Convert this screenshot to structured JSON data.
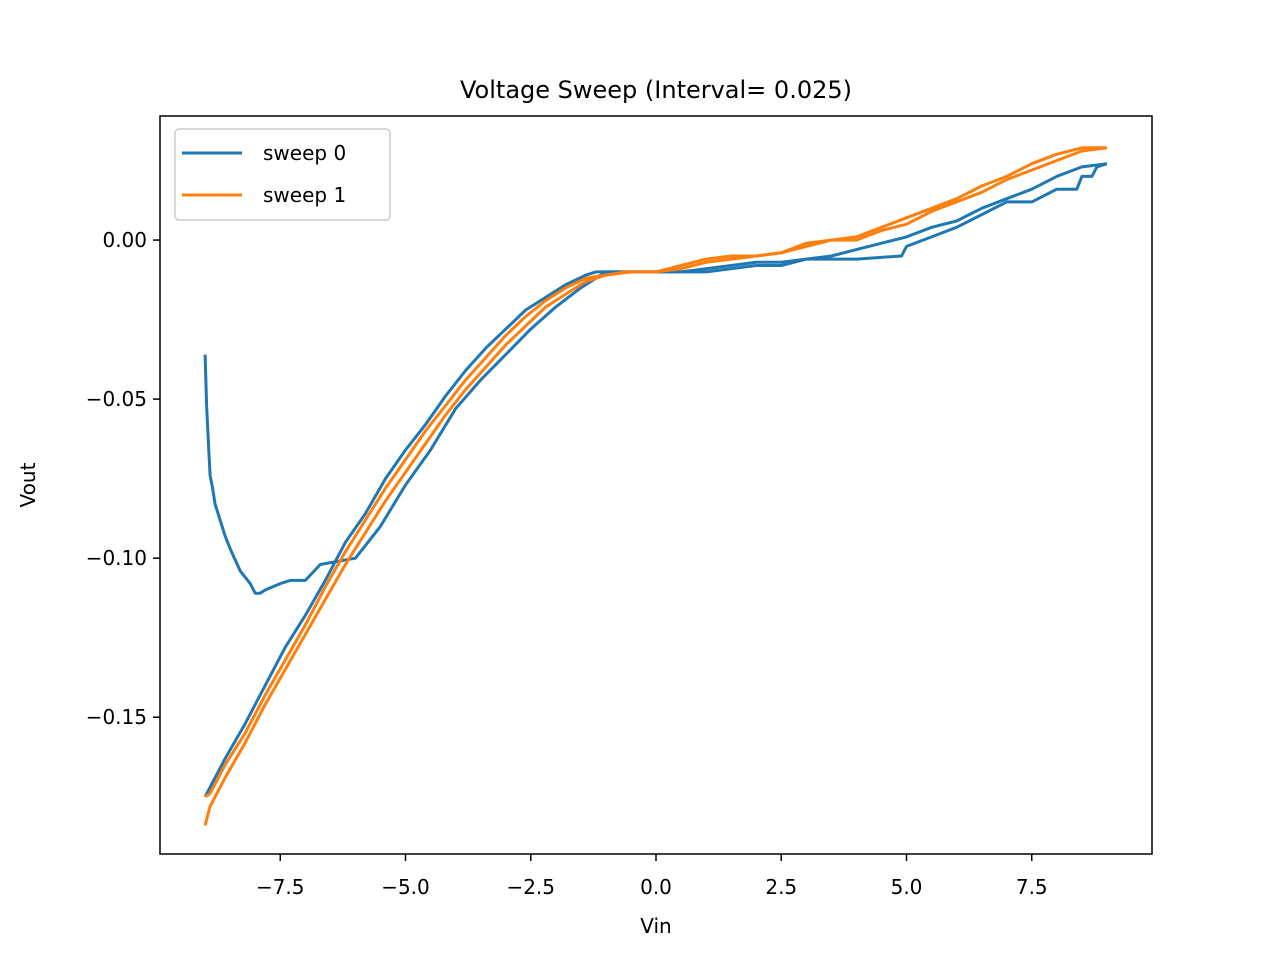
{
  "chart_data": {
    "type": "line",
    "title": "Voltage Sweep (Interval= 0.025)",
    "xlabel": "Vin",
    "ylabel": "Vout",
    "xlim": [
      -9.9,
      9.9
    ],
    "ylim": [
      -0.193,
      0.039
    ],
    "xticks": [
      -7.5,
      -5.0,
      -2.5,
      0.0,
      2.5,
      5.0,
      7.5
    ],
    "xtick_labels": [
      "−7.5",
      "−5.0",
      "−2.5",
      "0.0",
      "2.5",
      "5.0",
      "7.5"
    ],
    "yticks": [
      0.0,
      -0.05,
      -0.1,
      -0.15
    ],
    "ytick_labels": [
      "0.00",
      "−0.05",
      "−0.10",
      "−0.15"
    ],
    "grid": false,
    "legend": "upper left",
    "series": [
      {
        "name": "sweep 0",
        "color": "#1f77b4",
        "x": [
          -9.0,
          -8.97,
          -8.93,
          -8.9,
          -8.85,
          -8.8,
          -8.7,
          -8.6,
          -8.5,
          -8.3,
          -8.1,
          -8.0,
          -7.9,
          -7.8,
          -7.5,
          -7.3,
          -7.0,
          -6.7,
          -6.0,
          -5.5,
          -5.0,
          -4.5,
          -4.0,
          -3.5,
          -3.0,
          -2.5,
          -2.0,
          -1.5,
          -1.2,
          -1.0,
          0.0,
          1.0,
          2.0,
          2.5,
          3.0,
          4.0,
          4.9,
          5.0,
          5.5,
          6.0,
          6.5,
          7.0,
          7.5,
          8.0,
          8.4,
          8.5,
          8.7,
          8.8,
          9.0
        ],
        "y": [
          -0.036,
          -0.052,
          -0.065,
          -0.074,
          -0.078,
          -0.083,
          -0.088,
          -0.093,
          -0.097,
          -0.104,
          -0.108,
          -0.111,
          -0.111,
          -0.11,
          -0.108,
          -0.107,
          -0.107,
          -0.102,
          -0.1,
          -0.09,
          -0.077,
          -0.066,
          -0.053,
          -0.044,
          -0.036,
          -0.028,
          -0.021,
          -0.015,
          -0.012,
          -0.01,
          -0.01,
          -0.01,
          -0.008,
          -0.008,
          -0.006,
          -0.006,
          -0.005,
          -0.002,
          0.001,
          0.004,
          0.008,
          0.012,
          0.012,
          0.016,
          0.016,
          0.02,
          0.02,
          0.023,
          0.024
        ]
      },
      {
        "name": "sweep 0",
        "color": "#1f77b4",
        "x": [
          -9.0,
          -8.9,
          -8.6,
          -8.2,
          -7.8,
          -7.4,
          -7.0,
          -6.6,
          -6.2,
          -5.8,
          -5.4,
          -5.0,
          -4.6,
          -4.2,
          -3.8,
          -3.4,
          -3.0,
          -2.6,
          -2.2,
          -1.8,
          -1.4,
          -1.2,
          -1.0,
          -0.5,
          0.0,
          0.5,
          1.0,
          1.5,
          2.0,
          2.5,
          3.0,
          3.5,
          4.0,
          4.5,
          5.0,
          5.5,
          6.0,
          6.5,
          7.0,
          7.5,
          8.0,
          8.5,
          9.0
        ],
        "y": [
          -0.175,
          -0.172,
          -0.163,
          -0.152,
          -0.14,
          -0.128,
          -0.118,
          -0.107,
          -0.095,
          -0.086,
          -0.075,
          -0.066,
          -0.058,
          -0.049,
          -0.041,
          -0.034,
          -0.028,
          -0.022,
          -0.018,
          -0.014,
          -0.011,
          -0.01,
          -0.01,
          -0.01,
          -0.01,
          -0.01,
          -0.009,
          -0.008,
          -0.007,
          -0.007,
          -0.006,
          -0.005,
          -0.003,
          -0.001,
          0.001,
          0.004,
          0.006,
          0.01,
          0.013,
          0.016,
          0.02,
          0.023,
          0.024
        ]
      },
      {
        "name": "sweep 1",
        "color": "#ff7f0e",
        "x": [
          -9.0,
          -8.9,
          -8.6,
          -8.2,
          -7.8,
          -7.4,
          -7.0,
          -6.6,
          -6.2,
          -5.8,
          -5.4,
          -5.0,
          -4.6,
          -4.2,
          -3.8,
          -3.4,
          -3.0,
          -2.6,
          -2.2,
          -1.8,
          -1.4,
          -1.0,
          -0.6,
          0.0,
          0.5,
          1.0,
          1.5,
          2.0,
          2.5,
          3.0,
          3.5,
          4.0,
          4.5,
          5.0,
          5.5,
          6.0,
          6.5,
          7.0,
          7.5,
          8.0,
          8.5,
          9.0
        ],
        "y": [
          -0.184,
          -0.178,
          -0.169,
          -0.158,
          -0.146,
          -0.135,
          -0.124,
          -0.113,
          -0.102,
          -0.092,
          -0.082,
          -0.073,
          -0.064,
          -0.055,
          -0.047,
          -0.04,
          -0.033,
          -0.027,
          -0.021,
          -0.017,
          -0.013,
          -0.011,
          -0.01,
          -0.01,
          -0.009,
          -0.007,
          -0.006,
          -0.005,
          -0.004,
          -0.001,
          0.0,
          0.0,
          0.003,
          0.005,
          0.009,
          0.012,
          0.015,
          0.019,
          0.022,
          0.025,
          0.028,
          0.029
        ]
      },
      {
        "name": "sweep 1",
        "color": "#ff7f0e",
        "x": [
          -9.0,
          -8.9,
          -8.6,
          -8.2,
          -7.8,
          -7.4,
          -7.0,
          -6.6,
          -6.2,
          -5.8,
          -5.4,
          -5.0,
          -4.6,
          -4.2,
          -3.8,
          -3.4,
          -3.0,
          -2.6,
          -2.2,
          -1.8,
          -1.4,
          -1.0,
          -0.5,
          0.0,
          0.5,
          1.0,
          1.5,
          2.0,
          2.5,
          3.0,
          3.5,
          4.0,
          4.5,
          5.0,
          5.5,
          6.0,
          6.5,
          7.0,
          7.5,
          8.0,
          8.5,
          9.0
        ],
        "y": [
          -0.175,
          -0.174,
          -0.165,
          -0.155,
          -0.143,
          -0.132,
          -0.121,
          -0.109,
          -0.098,
          -0.088,
          -0.078,
          -0.069,
          -0.06,
          -0.052,
          -0.044,
          -0.037,
          -0.03,
          -0.024,
          -0.019,
          -0.015,
          -0.012,
          -0.011,
          -0.01,
          -0.01,
          -0.008,
          -0.006,
          -0.005,
          -0.005,
          -0.004,
          -0.002,
          0.0,
          0.001,
          0.004,
          0.007,
          0.01,
          0.013,
          0.017,
          0.02,
          0.024,
          0.027,
          0.029,
          0.029
        ]
      }
    ]
  }
}
